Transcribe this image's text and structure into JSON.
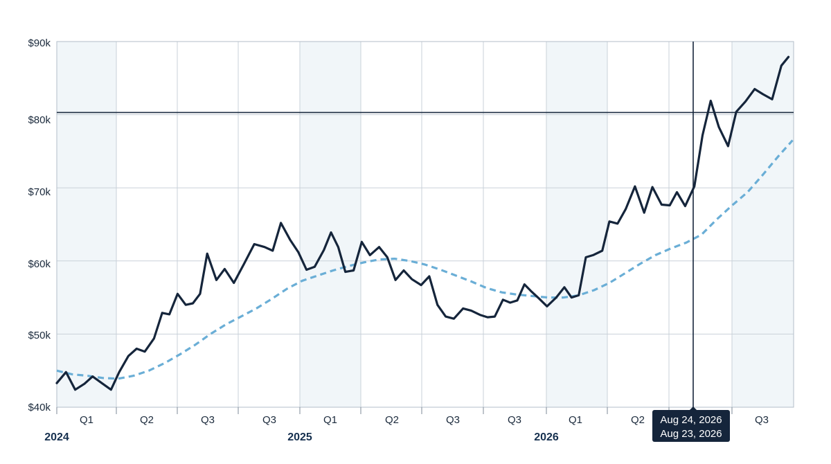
{
  "chart_data": {
    "type": "line",
    "y_ticks": [
      "$40k",
      "$50k",
      "$60k",
      "$70k",
      "$80k",
      "$90k"
    ],
    "ylim": [
      40000,
      90000
    ],
    "quarter_labels": [
      "Q1",
      "Q2",
      "Q3",
      "Q3",
      "Q1",
      "Q2",
      "Q3",
      "Q3",
      "Q1",
      "Q2",
      "Q3"
    ],
    "year_labels": [
      "2024",
      "2025",
      "2026"
    ],
    "reference_line_value": 80300,
    "crosshair": {
      "date_label_1": "Aug 24, 2026",
      "date_label_2": "Aug 23, 2026"
    },
    "series": [
      {
        "points": [
          [
            0,
            43.3
          ],
          [
            0.9,
            44.8
          ],
          [
            1.8,
            42.4
          ],
          [
            2.7,
            43.2
          ],
          [
            3.5,
            44.2
          ],
          [
            4.4,
            43.3
          ],
          [
            5.3,
            42.4
          ],
          [
            6.1,
            44.8
          ],
          [
            7.0,
            47.0
          ],
          [
            7.8,
            48.0
          ],
          [
            8.6,
            47.6
          ],
          [
            9.5,
            49.4
          ],
          [
            10.3,
            52.9
          ],
          [
            11.0,
            52.7
          ],
          [
            11.8,
            55.5
          ],
          [
            12.6,
            54.0
          ],
          [
            13.3,
            54.2
          ],
          [
            14.0,
            55.5
          ],
          [
            14.7,
            61.0
          ],
          [
            15.6,
            57.4
          ],
          [
            16.4,
            58.9
          ],
          [
            17.3,
            57.0
          ],
          [
            18.3,
            59.6
          ],
          [
            19.3,
            62.3
          ],
          [
            20.3,
            61.9
          ],
          [
            21.1,
            61.4
          ],
          [
            21.9,
            65.2
          ],
          [
            22.8,
            62.9
          ],
          [
            23.6,
            61.2
          ],
          [
            24.4,
            58.8
          ],
          [
            25.2,
            59.2
          ],
          [
            26.1,
            61.5
          ],
          [
            26.8,
            63.9
          ],
          [
            27.5,
            61.9
          ],
          [
            28.2,
            58.5
          ],
          [
            29.0,
            58.7
          ],
          [
            29.8,
            62.6
          ],
          [
            30.6,
            60.8
          ],
          [
            31.5,
            61.9
          ],
          [
            32.3,
            60.5
          ],
          [
            33.1,
            57.4
          ],
          [
            33.9,
            58.7
          ],
          [
            34.7,
            57.5
          ],
          [
            35.6,
            56.7
          ],
          [
            36.4,
            57.9
          ],
          [
            37.2,
            54.0
          ],
          [
            38.0,
            52.4
          ],
          [
            38.8,
            52.1
          ],
          [
            39.7,
            53.5
          ],
          [
            40.5,
            53.2
          ],
          [
            41.4,
            52.6
          ],
          [
            42.1,
            52.3
          ],
          [
            42.8,
            52.4
          ],
          [
            43.6,
            54.7
          ],
          [
            44.3,
            54.3
          ],
          [
            45.0,
            54.6
          ],
          [
            45.7,
            56.8
          ],
          [
            46.4,
            55.8
          ],
          [
            47.1,
            54.9
          ],
          [
            47.9,
            53.8
          ],
          [
            48.8,
            55.0
          ],
          [
            49.6,
            56.4
          ],
          [
            50.3,
            55.0
          ],
          [
            51.0,
            55.3
          ],
          [
            51.7,
            60.5
          ],
          [
            52.4,
            60.8
          ],
          [
            53.3,
            61.4
          ],
          [
            54.0,
            65.4
          ],
          [
            54.8,
            65.1
          ],
          [
            55.6,
            67.1
          ],
          [
            56.5,
            70.2
          ],
          [
            57.4,
            66.6
          ],
          [
            58.2,
            70.1
          ],
          [
            59.1,
            67.7
          ],
          [
            59.9,
            67.6
          ],
          [
            60.6,
            69.4
          ],
          [
            61.4,
            67.5
          ],
          [
            62.3,
            70.2
          ],
          [
            63.1,
            77.2
          ],
          [
            63.9,
            81.9
          ],
          [
            64.7,
            78.3
          ],
          [
            65.6,
            75.7
          ],
          [
            66.4,
            80.4
          ],
          [
            67.3,
            81.8
          ],
          [
            68.2,
            83.5
          ],
          [
            69.0,
            82.8
          ],
          [
            69.9,
            82.1
          ],
          [
            70.8,
            86.7
          ],
          [
            71.5,
            87.9
          ]
        ]
      },
      {
        "points": [
          [
            0,
            45.0
          ],
          [
            1.5,
            44.5
          ],
          [
            3.0,
            44.3
          ],
          [
            4.5,
            44.0
          ],
          [
            6.0,
            43.9
          ],
          [
            7.5,
            44.3
          ],
          [
            9.0,
            45.0
          ],
          [
            10.5,
            46.0
          ],
          [
            12.0,
            47.2
          ],
          [
            13.5,
            48.5
          ],
          [
            15.0,
            50.0
          ],
          [
            16.5,
            51.3
          ],
          [
            18.0,
            52.4
          ],
          [
            19.5,
            53.5
          ],
          [
            21.0,
            54.8
          ],
          [
            22.5,
            56.2
          ],
          [
            24.0,
            57.3
          ],
          [
            25.5,
            58.0
          ],
          [
            27.0,
            58.7
          ],
          [
            28.5,
            59.3
          ],
          [
            30.0,
            59.8
          ],
          [
            31.5,
            60.2
          ],
          [
            33.0,
            60.3
          ],
          [
            34.5,
            60.0
          ],
          [
            36.0,
            59.5
          ],
          [
            37.5,
            58.8
          ],
          [
            39.0,
            58.0
          ],
          [
            40.5,
            57.2
          ],
          [
            42.0,
            56.3
          ],
          [
            43.5,
            55.7
          ],
          [
            45.0,
            55.4
          ],
          [
            46.5,
            55.2
          ],
          [
            48.0,
            55.0
          ],
          [
            49.5,
            55.0
          ],
          [
            51.0,
            55.3
          ],
          [
            52.5,
            56.0
          ],
          [
            54.0,
            57.0
          ],
          [
            55.5,
            58.3
          ],
          [
            57.0,
            59.6
          ],
          [
            58.5,
            60.8
          ],
          [
            60.0,
            61.7
          ],
          [
            61.5,
            62.5
          ],
          [
            63.0,
            63.6
          ],
          [
            64.5,
            65.7
          ],
          [
            66.0,
            67.6
          ],
          [
            67.5,
            69.4
          ],
          [
            69.0,
            71.8
          ],
          [
            70.5,
            74.3
          ],
          [
            71.9,
            76.5
          ]
        ]
      }
    ]
  }
}
